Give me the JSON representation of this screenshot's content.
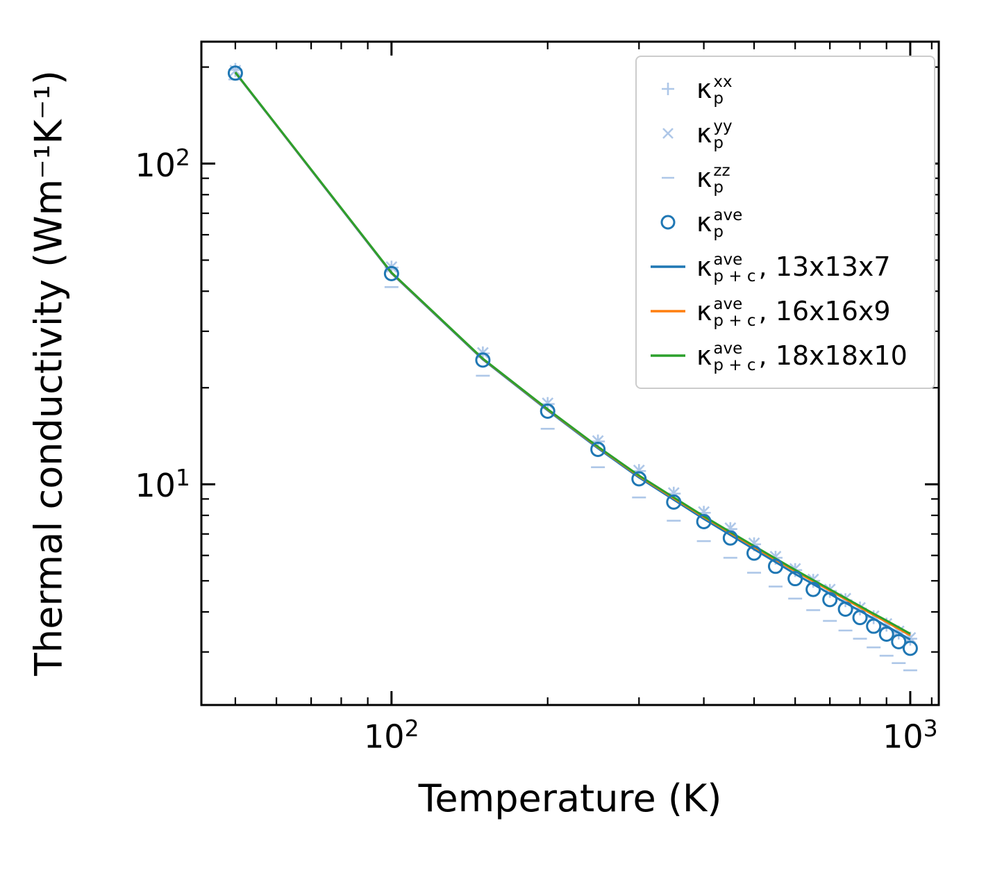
{
  "figure": {
    "xlabel": "Temperature (K)",
    "ylabel": "Thermal conductivity (Wm⁻¹K⁻¹)"
  },
  "chart_data": {
    "type": "line+scatter",
    "title": "",
    "xlabel": "Temperature (K)",
    "ylabel": "Thermal conductivity (Wm⁻¹K⁻¹)",
    "xscale": "log",
    "yscale": "log",
    "xlim": [
      43,
      1135
    ],
    "ylim": [
      2.05,
      240
    ],
    "grid": false,
    "legend_position": "upper right",
    "x": [
      50,
      100,
      150,
      200,
      250,
      300,
      350,
      400,
      450,
      500,
      550,
      600,
      650,
      700,
      750,
      800,
      850,
      900,
      950,
      1000
    ],
    "xticks": {
      "major": [
        {
          "v": 100,
          "base": "10",
          "exp": "2"
        },
        {
          "v": 1000,
          "base": "10",
          "exp": "3"
        }
      ],
      "minor": [
        50,
        60,
        70,
        80,
        90,
        200,
        300,
        400,
        500,
        600,
        700,
        800,
        900,
        1100
      ]
    },
    "yticks": {
      "major": [
        {
          "v": 10,
          "base": "10",
          "exp": "1"
        },
        {
          "v": 100,
          "base": "10",
          "exp": "2"
        }
      ],
      "minor": [
        3,
        4,
        5,
        6,
        7,
        8,
        9,
        20,
        30,
        40,
        50,
        60,
        70,
        80,
        90,
        200
      ]
    },
    "series": [
      {
        "name": "kappa_p_xx",
        "marker": "plus",
        "line": false,
        "color": "#aec7e8",
        "values": [
          196,
          47.4,
          25.6,
          17.8,
          13.6,
          11.0,
          9.35,
          8.15,
          7.25,
          6.5,
          5.9,
          5.4,
          5.0,
          4.65,
          4.35,
          4.1,
          3.85,
          3.65,
          3.45,
          3.3
        ]
      },
      {
        "name": "kappa_p_yy",
        "marker": "x",
        "line": false,
        "color": "#aec7e8",
        "values": [
          195,
          47.6,
          25.7,
          17.9,
          13.65,
          11.05,
          9.4,
          8.2,
          7.3,
          6.55,
          5.95,
          5.45,
          5.05,
          4.7,
          4.4,
          4.12,
          3.88,
          3.67,
          3.48,
          3.32
        ]
      },
      {
        "name": "kappa_p_zz",
        "marker": "dash",
        "line": false,
        "color": "#aec7e8",
        "values": [
          183,
          41.2,
          21.8,
          14.9,
          11.3,
          9.1,
          7.7,
          6.65,
          5.9,
          5.3,
          4.8,
          4.4,
          4.05,
          3.75,
          3.5,
          3.3,
          3.1,
          2.92,
          2.77,
          2.63
        ]
      },
      {
        "name": "kappa_p_ave",
        "marker": "circle",
        "line": false,
        "color": "#1f77b4",
        "values": [
          191.5,
          45.4,
          24.4,
          16.9,
          12.85,
          10.4,
          8.8,
          7.65,
          6.8,
          6.1,
          5.55,
          5.08,
          4.7,
          4.37,
          4.08,
          3.84,
          3.61,
          3.41,
          3.23,
          3.08
        ]
      },
      {
        "name": "kappa_p+c_ave_13x13x7",
        "marker": "none",
        "line": true,
        "color": "#1f77b4",
        "values": [
          192,
          45.5,
          24.5,
          17.0,
          12.95,
          10.5,
          8.95,
          7.8,
          6.95,
          6.27,
          5.72,
          5.25,
          4.88,
          4.55,
          4.27,
          4.03,
          3.81,
          3.61,
          3.44,
          3.28
        ]
      },
      {
        "name": "kappa_p+c_ave_16x16x9",
        "marker": "none",
        "line": true,
        "color": "#ff7f0e",
        "values": [
          192.5,
          45.7,
          24.6,
          17.1,
          13.05,
          10.6,
          9.05,
          7.9,
          7.05,
          6.37,
          5.82,
          5.36,
          4.98,
          4.66,
          4.38,
          4.13,
          3.91,
          3.72,
          3.54,
          3.38
        ]
      },
      {
        "name": "kappa_p+c_ave_18x18x10",
        "marker": "none",
        "line": true,
        "color": "#2ca02c",
        "values": [
          192.7,
          45.75,
          24.65,
          17.15,
          13.1,
          10.65,
          9.1,
          7.95,
          7.1,
          6.42,
          5.87,
          5.41,
          5.03,
          4.7,
          4.42,
          4.17,
          3.95,
          3.76,
          3.58,
          3.42
        ]
      }
    ]
  },
  "legend": {
    "items": [
      {
        "type": "plus",
        "color": "#aec7e8",
        "kappa": "κ",
        "sup": "xx",
        "sub": "p",
        "rest": ""
      },
      {
        "type": "x",
        "color": "#aec7e8",
        "kappa": "κ",
        "sup": "yy",
        "sub": "p",
        "rest": ""
      },
      {
        "type": "dash",
        "color": "#aec7e8",
        "kappa": "κ",
        "sup": "zz",
        "sub": "p",
        "rest": ""
      },
      {
        "type": "circle",
        "color": "#1f77b4",
        "kappa": "κ",
        "sup": "ave",
        "sub": "p",
        "rest": ""
      },
      {
        "type": "line",
        "color": "#1f77b4",
        "kappa": "κ",
        "sup": "ave",
        "sub": "p + c",
        "rest": ", 13x13x7"
      },
      {
        "type": "line",
        "color": "#ff7f0e",
        "kappa": "κ",
        "sup": "ave",
        "sub": "p + c",
        "rest": ", 16x16x9"
      },
      {
        "type": "line",
        "color": "#2ca02c",
        "kappa": "κ",
        "sup": "ave",
        "sub": "p + c",
        "rest": ", 18x18x10"
      }
    ]
  },
  "colors": {
    "frame": "#000000",
    "pale_marker": "#aec7e8",
    "blue": "#1f77b4",
    "orange": "#ff7f0e",
    "green": "#2ca02c"
  }
}
